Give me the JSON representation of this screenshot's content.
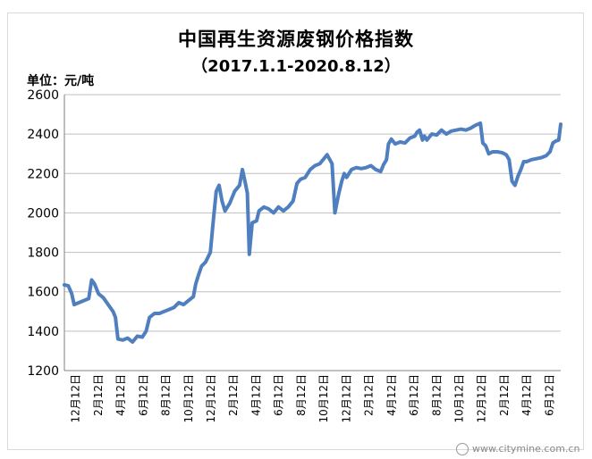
{
  "chart_data": {
    "type": "line",
    "title": "中国再生资源废钢价格指数",
    "subtitle": "（2017.1.1-2020.8.12）",
    "unit_label": "单位：元/吨",
    "ylim": [
      1200,
      2600
    ],
    "yticks": [
      "2600",
      "2400",
      "2200",
      "2000",
      "1800",
      "1600",
      "1400",
      "1200"
    ],
    "xticks": [
      "12月12日",
      "2月12日",
      "4月12日",
      "6月12日",
      "8月12日",
      "10月12日",
      "12月12日",
      "2月12日",
      "4月12日",
      "6月12日",
      "8月12日",
      "10月12日",
      "12月12日",
      "2月12日",
      "4月12日",
      "6月12日",
      "8月12日",
      "10月12日",
      "12月12日",
      "2月12日",
      "4月12日",
      "6月12日"
    ],
    "grid": true,
    "legend": "none",
    "line_color": "#4f7fbf",
    "series": [
      {
        "values": [
          [
            0,
            1635
          ],
          [
            0.8,
            1630
          ],
          [
            1.5,
            1590
          ],
          [
            2,
            1535
          ],
          [
            3,
            1545
          ],
          [
            4,
            1555
          ],
          [
            5,
            1565
          ],
          [
            5.6,
            1660
          ],
          [
            6.2,
            1640
          ],
          [
            7,
            1590
          ],
          [
            8,
            1570
          ],
          [
            9,
            1535
          ],
          [
            10,
            1500
          ],
          [
            10.5,
            1470
          ],
          [
            11,
            1360
          ],
          [
            12,
            1355
          ],
          [
            13,
            1365
          ],
          [
            14,
            1345
          ],
          [
            15,
            1375
          ],
          [
            16,
            1370
          ],
          [
            16.8,
            1400
          ],
          [
            17.5,
            1470
          ],
          [
            18.5,
            1490
          ],
          [
            19.5,
            1490
          ],
          [
            20.5,
            1500
          ],
          [
            21.5,
            1510
          ],
          [
            22.5,
            1520
          ],
          [
            23.5,
            1545
          ],
          [
            24.5,
            1535
          ],
          [
            25.5,
            1555
          ],
          [
            26.5,
            1575
          ],
          [
            27,
            1640
          ],
          [
            27.5,
            1680
          ],
          [
            28.2,
            1730
          ],
          [
            29,
            1750
          ],
          [
            30,
            1800
          ],
          [
            30.6,
            1960
          ],
          [
            31.2,
            2110
          ],
          [
            31.8,
            2140
          ],
          [
            32.4,
            2060
          ],
          [
            33,
            2010
          ],
          [
            34,
            2050
          ],
          [
            35,
            2110
          ],
          [
            36,
            2140
          ],
          [
            36.6,
            2220
          ],
          [
            37.2,
            2150
          ],
          [
            37.6,
            2100
          ],
          [
            38,
            1790
          ],
          [
            38.6,
            1950
          ],
          [
            39.5,
            1960
          ],
          [
            40,
            2010
          ],
          [
            41,
            2030
          ],
          [
            42,
            2020
          ],
          [
            43,
            2000
          ],
          [
            44,
            2030
          ],
          [
            45,
            2010
          ],
          [
            46,
            2030
          ],
          [
            47,
            2060
          ],
          [
            47.8,
            2150
          ],
          [
            48.5,
            2170
          ],
          [
            49.5,
            2180
          ],
          [
            50.5,
            2220
          ],
          [
            51.5,
            2240
          ],
          [
            52.5,
            2250
          ],
          [
            53.5,
            2280
          ],
          [
            54,
            2295
          ],
          [
            55,
            2250
          ],
          [
            55.6,
            2000
          ],
          [
            56.4,
            2100
          ],
          [
            57,
            2160
          ],
          [
            57.5,
            2200
          ],
          [
            58,
            2180
          ],
          [
            59,
            2220
          ],
          [
            60,
            2230
          ],
          [
            61,
            2225
          ],
          [
            62,
            2230
          ],
          [
            63,
            2240
          ],
          [
            64,
            2220
          ],
          [
            65,
            2210
          ],
          [
            65.6,
            2245
          ],
          [
            66.2,
            2270
          ],
          [
            66.6,
            2350
          ],
          [
            67.2,
            2375
          ],
          [
            68,
            2350
          ],
          [
            69,
            2360
          ],
          [
            70,
            2355
          ],
          [
            71,
            2380
          ],
          [
            72,
            2390
          ],
          [
            72.5,
            2410
          ],
          [
            73,
            2420
          ],
          [
            73.6,
            2370
          ],
          [
            74,
            2390
          ],
          [
            74.5,
            2370
          ],
          [
            75.5,
            2400
          ],
          [
            76.5,
            2395
          ],
          [
            77.5,
            2420
          ],
          [
            78.5,
            2400
          ],
          [
            79.5,
            2415
          ],
          [
            80.5,
            2420
          ],
          [
            81.5,
            2425
          ],
          [
            82.5,
            2420
          ],
          [
            83.5,
            2430
          ],
          [
            84.5,
            2445
          ],
          [
            85.5,
            2455
          ],
          [
            86,
            2355
          ],
          [
            86.6,
            2340
          ],
          [
            87.2,
            2300
          ],
          [
            88,
            2310
          ],
          [
            89,
            2310
          ],
          [
            90,
            2305
          ],
          [
            90.8,
            2295
          ],
          [
            91.4,
            2270
          ],
          [
            92,
            2160
          ],
          [
            92.6,
            2140
          ],
          [
            93.2,
            2185
          ],
          [
            93.8,
            2220
          ],
          [
            94.4,
            2260
          ],
          [
            95,
            2260
          ],
          [
            96,
            2270
          ],
          [
            97,
            2275
          ],
          [
            98,
            2280
          ],
          [
            99,
            2290
          ],
          [
            99.8,
            2310
          ],
          [
            100.4,
            2355
          ],
          [
            101,
            2365
          ],
          [
            101.6,
            2370
          ],
          [
            102,
            2450
          ]
        ]
      }
    ]
  },
  "watermark": "www.citymine.com.cn"
}
